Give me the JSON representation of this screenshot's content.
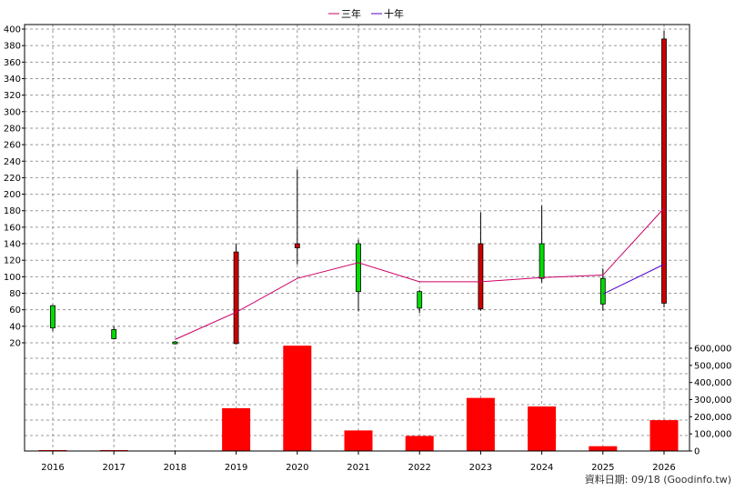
{
  "chart_data": {
    "type": "candlestick+line+bar",
    "categories": [
      "2016",
      "2017",
      "2018",
      "2019",
      "2020",
      "2021",
      "2022",
      "2023",
      "2024",
      "2025",
      "2026"
    ],
    "price_axis": {
      "ylim": [
        0,
        400
      ],
      "ticks": [
        20,
        40,
        60,
        80,
        100,
        120,
        140,
        160,
        180,
        200,
        220,
        240,
        260,
        280,
        300,
        320,
        340,
        360,
        380,
        400
      ]
    },
    "volume_axis": {
      "ylim": [
        0,
        600000
      ],
      "ticks": [
        0,
        100000,
        200000,
        300000,
        400000,
        500000,
        600000
      ],
      "tick_labels": [
        "0",
        "100,000",
        "200,000",
        "300,000",
        "400,000",
        "500,000",
        "600,000"
      ]
    },
    "candles": [
      {
        "open": 38,
        "close": 65,
        "high": 66,
        "low": 34,
        "direction": "down"
      },
      {
        "open": 25,
        "close": 36,
        "high": 40,
        "low": 24,
        "direction": "down"
      },
      {
        "open": 19,
        "close": 21,
        "high": 22,
        "low": 18,
        "direction": "down"
      },
      {
        "open": 19,
        "close": 130,
        "high": 140,
        "low": 18,
        "direction": "up"
      },
      {
        "open": 135,
        "close": 140,
        "high": 230,
        "low": 115,
        "direction": "up"
      },
      {
        "open": 82,
        "close": 140,
        "high": 145,
        "low": 58,
        "direction": "down"
      },
      {
        "open": 62,
        "close": 82,
        "high": 84,
        "low": 56,
        "direction": "down"
      },
      {
        "open": 61,
        "close": 140,
        "high": 178,
        "low": 59,
        "direction": "up"
      },
      {
        "open": 98,
        "close": 140,
        "high": 186,
        "low": 93,
        "direction": "down"
      },
      {
        "open": 67,
        "close": 98,
        "high": 110,
        "low": 59,
        "direction": "down"
      },
      {
        "open": 68,
        "close": 388,
        "high": 398,
        "low": 63,
        "direction": "up"
      }
    ],
    "series": [
      {
        "name": "三年",
        "values": [
          null,
          null,
          24,
          57,
          98,
          117,
          94,
          94,
          99,
          102,
          183
        ]
      },
      {
        "name": "十年",
        "values": [
          null,
          null,
          null,
          null,
          null,
          null,
          null,
          null,
          null,
          79,
          115
        ]
      }
    ],
    "volume": [
      1000,
      1000,
      0,
      250000,
      615000,
      120000,
      88000,
      310000,
      260000,
      28000,
      180000
    ],
    "legend": {
      "placement": "top-center"
    }
  },
  "colors": {
    "up": "#ff0000",
    "down": "#00dd00",
    "three_year": "#cc0066",
    "ten_year": "#5500cc",
    "volume": "#ff0000",
    "grid": "#999999"
  },
  "credit": "資料日期: 09/18 (Goodinfo.tw)"
}
